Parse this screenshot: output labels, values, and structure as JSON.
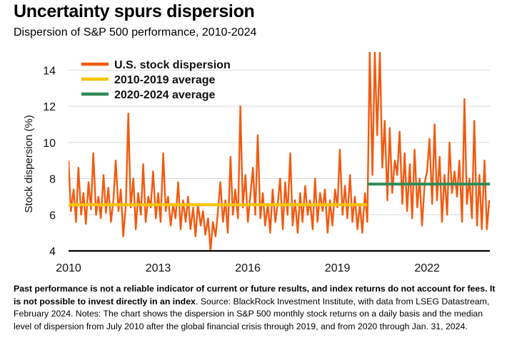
{
  "title": "Uncertainty spurs dispersion",
  "subtitle": "Dispersion of S&P 500 performance, 2010-2024",
  "footnote": {
    "bold": "Past performance is not a reliable indicator of current or future results, and index returns do not account for fees. It is not possible to invest directly in an index",
    "text": ". Source: BlackRock Investment Institute, with data from LSEG Datastream, February 2024. Notes: The chart shows the dispersion in S&P 500 monthly stock returns on a daily basis and the median level of dispersion from July 2010 after the global financial crisis through 2019, and from 2020 through Jan. 31, 2024."
  },
  "chart_data": {
    "type": "line",
    "ylabel": "Stock dispersion (%)",
    "xlabel": "",
    "xlim": [
      2010.0,
      2024.1
    ],
    "ylim": [
      4,
      15
    ],
    "x_ticks": [
      "2010",
      "2013",
      "2016",
      "2019",
      "2022"
    ],
    "y_ticks": [
      "4",
      "6",
      "8",
      "10",
      "12",
      "14"
    ],
    "grid": "horizontal",
    "legend_placement": "top-left",
    "series": [
      {
        "name": "U.S. stock dispersion",
        "color": "#f25a0f",
        "x": [
          2010.0,
          2010.08,
          2010.17,
          2010.25,
          2010.33,
          2010.42,
          2010.5,
          2010.58,
          2010.67,
          2010.75,
          2010.83,
          2010.92,
          2011.0,
          2011.08,
          2011.17,
          2011.25,
          2011.33,
          2011.42,
          2011.5,
          2011.58,
          2011.67,
          2011.75,
          2011.83,
          2011.92,
          2012.0,
          2012.08,
          2012.17,
          2012.25,
          2012.33,
          2012.42,
          2012.5,
          2012.58,
          2012.67,
          2012.75,
          2012.83,
          2012.92,
          2013.0,
          2013.08,
          2013.17,
          2013.25,
          2013.33,
          2013.42,
          2013.5,
          2013.58,
          2013.67,
          2013.75,
          2013.83,
          2013.92,
          2014.0,
          2014.08,
          2014.17,
          2014.25,
          2014.33,
          2014.42,
          2014.5,
          2014.58,
          2014.67,
          2014.75,
          2014.83,
          2014.92,
          2015.0,
          2015.08,
          2015.17,
          2015.25,
          2015.33,
          2015.42,
          2015.5,
          2015.58,
          2015.67,
          2015.75,
          2015.83,
          2015.92,
          2016.0,
          2016.08,
          2016.17,
          2016.25,
          2016.33,
          2016.42,
          2016.5,
          2016.58,
          2016.67,
          2016.75,
          2016.83,
          2016.92,
          2017.0,
          2017.08,
          2017.17,
          2017.25,
          2017.33,
          2017.42,
          2017.5,
          2017.58,
          2017.67,
          2017.75,
          2017.83,
          2017.92,
          2018.0,
          2018.08,
          2018.17,
          2018.25,
          2018.33,
          2018.42,
          2018.5,
          2018.58,
          2018.67,
          2018.75,
          2018.83,
          2018.92,
          2019.0,
          2019.08,
          2019.17,
          2019.25,
          2019.33,
          2019.42,
          2019.5,
          2019.58,
          2019.67,
          2019.75,
          2019.83,
          2019.92,
          2020.0,
          2020.08,
          2020.17,
          2020.25,
          2020.33,
          2020.42,
          2020.5,
          2020.58,
          2020.67,
          2020.75,
          2020.83,
          2020.92,
          2021.0,
          2021.08,
          2021.17,
          2021.25,
          2021.33,
          2021.42,
          2021.5,
          2021.58,
          2021.67,
          2021.75,
          2021.83,
          2021.92,
          2022.0,
          2022.08,
          2022.17,
          2022.25,
          2022.33,
          2022.42,
          2022.5,
          2022.58,
          2022.67,
          2022.75,
          2022.83,
          2022.92,
          2023.0,
          2023.08,
          2023.17,
          2023.25,
          2023.33,
          2023.42,
          2023.5,
          2023.58,
          2023.67,
          2023.75,
          2023.83,
          2023.92,
          2024.0,
          2024.08
        ],
        "y": [
          9.0,
          6.2,
          7.4,
          5.6,
          8.6,
          6.0,
          7.2,
          5.5,
          7.8,
          6.3,
          9.4,
          6.0,
          7.0,
          5.8,
          8.2,
          6.1,
          7.5,
          5.6,
          6.8,
          9.0,
          6.2,
          7.4,
          4.8,
          6.6,
          11.6,
          6.4,
          8.0,
          5.2,
          7.2,
          6.0,
          8.8,
          5.6,
          7.0,
          6.4,
          8.4,
          5.8,
          7.2,
          5.6,
          9.4,
          6.2,
          7.0,
          5.4,
          6.6,
          5.8,
          7.8,
          5.2,
          6.8,
          5.6,
          7.0,
          5.2,
          6.4,
          4.8,
          6.6,
          5.4,
          6.2,
          4.9,
          5.8,
          4.0,
          5.6,
          4.8,
          6.2,
          7.8,
          5.6,
          6.8,
          5.0,
          9.2,
          6.0,
          7.4,
          5.8,
          12.0,
          6.4,
          8.2,
          5.6,
          7.0,
          8.6,
          6.0,
          10.4,
          5.8,
          7.2,
          5.4,
          6.6,
          5.0,
          7.4,
          5.6,
          6.6,
          8.0,
          5.2,
          7.8,
          6.0,
          9.4,
          5.4,
          6.8,
          5.0,
          7.2,
          5.6,
          7.6,
          6.0,
          6.8,
          5.2,
          8.0,
          5.6,
          7.2,
          6.2,
          7.4,
          5.0,
          6.8,
          5.4,
          7.4,
          6.4,
          9.6,
          6.0,
          7.6,
          5.8,
          8.2,
          5.6,
          7.0,
          5.2,
          6.6,
          5.0,
          7.2,
          5.6,
          15.0,
          8.2,
          15.0,
          10.4,
          15.0,
          8.6,
          11.2,
          6.8,
          10.8,
          7.2,
          9.0,
          8.2,
          10.6,
          6.6,
          9.4,
          6.2,
          8.8,
          5.8,
          9.6,
          6.4,
          8.0,
          5.4,
          7.8,
          8.4,
          10.2,
          6.6,
          11.0,
          6.8,
          9.2,
          5.6,
          8.2,
          6.0,
          10.0,
          7.2,
          8.4,
          7.0,
          9.0,
          5.6,
          12.4,
          6.6,
          8.0,
          5.8,
          11.2,
          5.4,
          8.2,
          5.2,
          9.0,
          5.2,
          6.8
        ]
      },
      {
        "name": "2010-2019 average",
        "color": "#f7c400",
        "x": [
          2010.0,
          2020.0
        ],
        "y": [
          6.55,
          6.55
        ]
      },
      {
        "name": "2020-2024 average",
        "color": "#2e8b57",
        "x": [
          2020.0,
          2024.1
        ],
        "y": [
          7.7,
          7.7
        ]
      }
    ]
  }
}
